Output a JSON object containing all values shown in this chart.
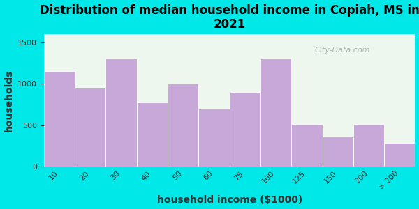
{
  "title": "Distribution of median household income in Copiah, MS in\n2021",
  "xlabel": "household income ($1000)",
  "ylabel": "households",
  "categories": [
    "10",
    "20",
    "30",
    "40",
    "50",
    "60",
    "75",
    "100",
    "125",
    "150",
    "200",
    "> 200"
  ],
  "values": [
    1150,
    950,
    1300,
    775,
    1000,
    700,
    900,
    1300,
    510,
    360,
    510,
    290
  ],
  "bar_color": "#c8a8d8",
  "bar_edgecolor": "white",
  "background_outer": "#00e8e8",
  "background_inner_top": "#e8f5e9",
  "background_inner_bottom": "#f8fff8",
  "yticks": [
    0,
    500,
    1000,
    1500
  ],
  "ylim": [
    0,
    1600
  ],
  "title_fontsize": 12,
  "label_fontsize": 10,
  "watermark_text": "City-Data.com"
}
